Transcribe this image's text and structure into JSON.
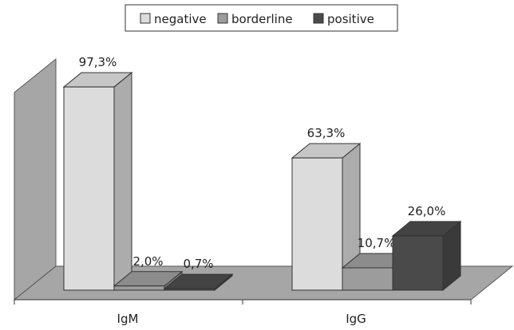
{
  "chart_data": {
    "type": "bar",
    "categories": [
      "IgM",
      "IgG"
    ],
    "series": [
      {
        "name": "negative",
        "values": [
          97.3,
          63.3
        ],
        "labels": [
          "97,3%",
          "63,3%"
        ],
        "color": "#dcdcdc"
      },
      {
        "name": "borderline",
        "values": [
          2.0,
          10.7
        ],
        "labels": [
          "2,0%",
          "10,7%"
        ],
        "color": "#9c9c9c"
      },
      {
        "name": "positive",
        "values": [
          0.7,
          26.0
        ],
        "labels": [
          "0,7%",
          "26,0%"
        ],
        "color": "#4a4a4a"
      }
    ],
    "ylim": [
      0,
      100
    ],
    "legend": "top",
    "grid": false,
    "style": "3d-clustered-column"
  }
}
